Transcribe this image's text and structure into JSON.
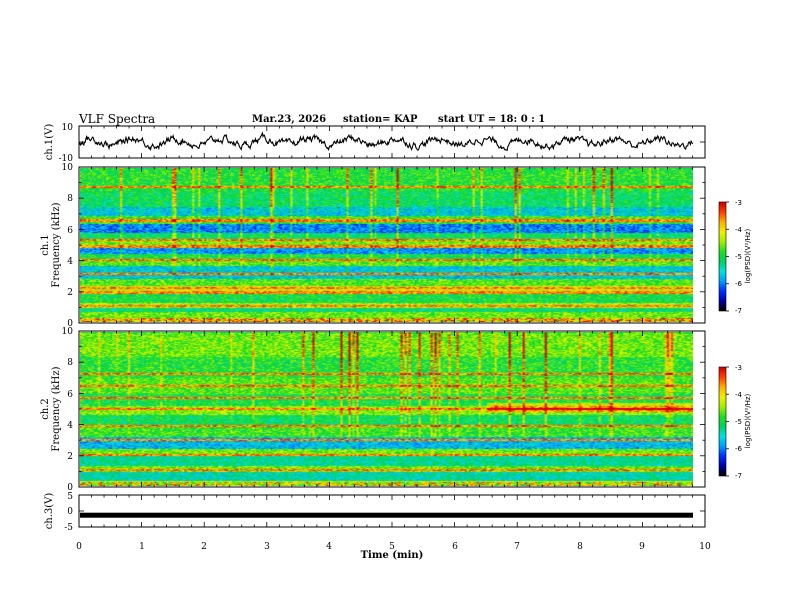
{
  "header": {
    "title": "VLF Spectra",
    "date": "Mar.23, 2026",
    "station": "station= KAP",
    "start": "start  UT =   18: 0  : 1"
  },
  "colors": {
    "colormap": [
      "#000000",
      "#0000b0",
      "#0030ff",
      "#00a0ff",
      "#00e0e0",
      "#00d060",
      "#20e020",
      "#a0f000",
      "#f0f000",
      "#ffb000",
      "#ff4000",
      "#d00000",
      "#ffffff"
    ]
  },
  "chart_data": [
    {
      "type": "line",
      "name": "ch1-waveform",
      "ylabel": "ch.1(V)",
      "ylim": [
        -10,
        10
      ],
      "yticks": [
        "10",
        "-10"
      ],
      "xlim": [
        0,
        10
      ],
      "series": [
        {
          "name": "ch.1",
          "amplitude_range": [
            -8,
            6
          ],
          "x_end": 9.8
        }
      ]
    },
    {
      "type": "heatmap",
      "name": "ch1-spectrogram",
      "ylabel_top": "ch.1",
      "ylabel": "Frequency (kHz)",
      "ylim": [
        0,
        10
      ],
      "yticks": [
        "0",
        "2",
        "4",
        "6",
        "8",
        "10"
      ],
      "xlim": [
        0,
        9.8
      ],
      "colorbar": {
        "label": "log(PSD)(V²/Hz)",
        "range": [
          -7,
          -3
        ],
        "ticks": [
          "-3",
          "-4",
          "-5",
          "-6",
          "-7"
        ]
      },
      "bands": [
        {
          "f": [
            0.0,
            0.2
          ],
          "v": -3.8
        },
        {
          "f": [
            0.2,
            0.6
          ],
          "v": -4.6
        },
        {
          "f": [
            0.6,
            0.9
          ],
          "v": -5.2
        },
        {
          "f": [
            0.9,
            1.2
          ],
          "v": -4.4
        },
        {
          "f": [
            1.2,
            1.9
          ],
          "v": -5.0
        },
        {
          "f": [
            1.9,
            2.3
          ],
          "v": -4.2
        },
        {
          "f": [
            2.3,
            2.8
          ],
          "v": -4.7
        },
        {
          "f": [
            2.8,
            3.6
          ],
          "v": -5.6
        },
        {
          "f": [
            3.6,
            4.0
          ],
          "v": -4.7
        },
        {
          "f": [
            4.0,
            4.4
          ],
          "v": -5.0
        },
        {
          "f": [
            4.4,
            5.0
          ],
          "v": -5.9
        },
        {
          "f": [
            5.0,
            5.4
          ],
          "v": -4.6
        },
        {
          "f": [
            5.4,
            5.8
          ],
          "v": -5.1
        },
        {
          "f": [
            5.8,
            6.4
          ],
          "v": -6.0
        },
        {
          "f": [
            6.4,
            6.9
          ],
          "v": -4.8
        },
        {
          "f": [
            6.9,
            7.5
          ],
          "v": -5.6
        },
        {
          "f": [
            7.5,
            8.5
          ],
          "v": -5.1
        },
        {
          "f": [
            8.5,
            10.0
          ],
          "v": -4.9
        }
      ],
      "lines_khz": [
        1.0,
        1.9,
        2.2,
        3.1,
        4.0,
        4.9,
        5.3,
        6.6,
        8.8
      ]
    },
    {
      "type": "heatmap",
      "name": "ch2-spectrogram",
      "ylabel_top": "ch.2",
      "ylabel": "Frequency (kHz)",
      "ylim": [
        0,
        10
      ],
      "yticks": [
        "0",
        "2",
        "4",
        "6",
        "8",
        "10"
      ],
      "xlim": [
        0,
        9.8
      ],
      "colorbar": {
        "label": "log(PSD)(V²/Hz)",
        "range": [
          -7,
          -3
        ],
        "ticks": [
          "-3",
          "-4",
          "-5",
          "-6",
          "-7"
        ]
      },
      "bands": [
        {
          "f": [
            0.0,
            0.3
          ],
          "v": -4.2
        },
        {
          "f": [
            0.3,
            0.9
          ],
          "v": -5.4
        },
        {
          "f": [
            0.9,
            1.3
          ],
          "v": -4.6
        },
        {
          "f": [
            1.3,
            1.9
          ],
          "v": -5.3
        },
        {
          "f": [
            1.9,
            2.4
          ],
          "v": -4.6
        },
        {
          "f": [
            2.4,
            3.2
          ],
          "v": -5.7
        },
        {
          "f": [
            3.2,
            3.8
          ],
          "v": -4.8
        },
        {
          "f": [
            3.8,
            4.6
          ],
          "v": -5.1
        },
        {
          "f": [
            4.6,
            5.2
          ],
          "v": -4.5
        },
        {
          "f": [
            5.2,
            6.0
          ],
          "v": -5.0
        },
        {
          "f": [
            6.0,
            7.0
          ],
          "v": -4.7
        },
        {
          "f": [
            7.0,
            8.4
          ],
          "v": -4.9
        },
        {
          "f": [
            8.4,
            10.0
          ],
          "v": -4.6
        }
      ],
      "lines_khz": [
        1.0,
        2.0,
        3.0,
        3.9,
        5.0,
        5.7,
        6.5,
        7.3
      ]
    },
    {
      "type": "line",
      "name": "ch3-signal",
      "ylabel": "ch.3(V)",
      "ylim": [
        -5,
        5
      ],
      "yticks": [
        "5",
        "0",
        "-5"
      ],
      "xlim": [
        0,
        10
      ],
      "series": [
        {
          "name": "ch.3",
          "level": -1.3
        }
      ]
    }
  ],
  "xaxis": {
    "label": "Time  (min)",
    "ticks": [
      "0",
      "1",
      "2",
      "3",
      "4",
      "5",
      "6",
      "7",
      "8",
      "9",
      "10"
    ]
  }
}
